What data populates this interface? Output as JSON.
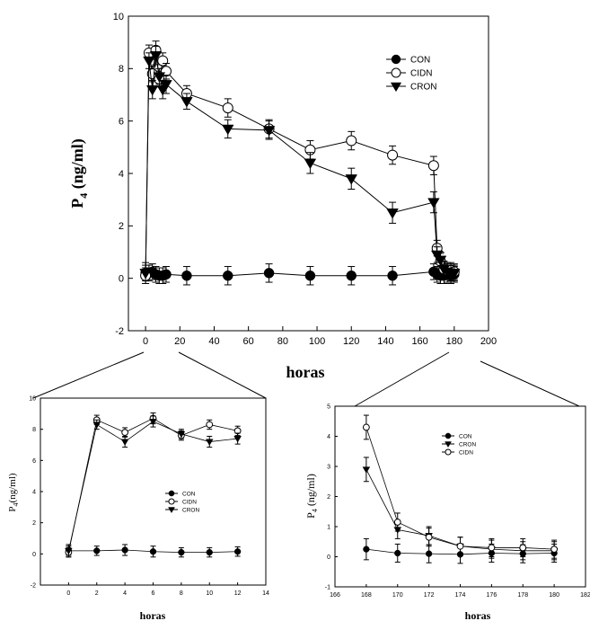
{
  "chart_data": [
    {
      "type": "line",
      "xlabel": "horas",
      "ylabel": "P",
      "ylabel_sub": "4",
      "ylabel_unit": " (ng/ml)",
      "xlim": [
        -10,
        200
      ],
      "ylim": [
        -2,
        10
      ],
      "xticks": [
        0,
        20,
        40,
        60,
        80,
        100,
        120,
        140,
        160,
        180,
        200
      ],
      "yticks": [
        -2,
        0,
        2,
        4,
        6,
        8,
        10
      ],
      "grid": false,
      "legend_position": "top-right",
      "legend_order": [
        "CON",
        "CIDN",
        "CRON"
      ],
      "series": [
        {
          "name": "CON",
          "marker": "filled-circle",
          "x": [
            0,
            2,
            4,
            6,
            8,
            10,
            12,
            24,
            48,
            72,
            96,
            120,
            144,
            168,
            170,
            172,
            174,
            176,
            178,
            180
          ],
          "y": [
            0.2,
            0.2,
            0.25,
            0.15,
            0.1,
            0.1,
            0.15,
            0.1,
            0.1,
            0.2,
            0.1,
            0.1,
            0.1,
            0.25,
            0.15,
            0.1,
            0.1,
            0.15,
            0.1,
            0.15
          ],
          "err": [
            0.4,
            0.3,
            0.3,
            0.3,
            0.3,
            0.3,
            0.3,
            0.35,
            0.35,
            0.35,
            0.35,
            0.35,
            0.35,
            0.3,
            0.3,
            0.3,
            0.3,
            0.3,
            0.3,
            0.3
          ]
        },
        {
          "name": "CIDN",
          "marker": "open-circle",
          "x": [
            0,
            2,
            4,
            6,
            8,
            10,
            12,
            24,
            48,
            72,
            96,
            120,
            144,
            168,
            170,
            172,
            174,
            176,
            178,
            180
          ],
          "y": [
            0.1,
            8.6,
            7.8,
            8.7,
            7.6,
            8.3,
            7.9,
            7.05,
            6.5,
            5.7,
            4.9,
            5.25,
            4.7,
            4.3,
            1.15,
            0.65,
            0.35,
            0.3,
            0.3,
            0.25
          ],
          "err": [
            0.3,
            0.3,
            0.3,
            0.35,
            0.3,
            0.3,
            0.3,
            0.3,
            0.35,
            0.35,
            0.35,
            0.35,
            0.35,
            0.35,
            0.3,
            0.3,
            0.3,
            0.3,
            0.3,
            0.3
          ]
        },
        {
          "name": "CRON",
          "marker": "filled-triangle-down",
          "x": [
            0,
            2,
            4,
            6,
            8,
            10,
            12,
            24,
            48,
            72,
            96,
            120,
            144,
            168,
            170,
            172,
            174,
            176,
            178,
            180
          ],
          "y": [
            0.2,
            8.3,
            7.2,
            8.5,
            7.7,
            7.2,
            7.4,
            6.75,
            5.7,
            5.65,
            4.4,
            3.8,
            2.5,
            2.9,
            0.9,
            0.7,
            0.35,
            0.25,
            0.2,
            0.2
          ],
          "err": [
            0.3,
            0.3,
            0.35,
            0.35,
            0.3,
            0.35,
            0.35,
            0.3,
            0.35,
            0.35,
            0.4,
            0.4,
            0.4,
            0.4,
            0.3,
            0.3,
            0.3,
            0.3,
            0.3,
            0.3
          ]
        }
      ]
    },
    {
      "type": "line",
      "xlabel": "horas",
      "ylabel": "P",
      "ylabel_sub": "4",
      "ylabel_unit": "(ng/ml)",
      "xlim": [
        -2,
        14
      ],
      "ylim": [
        -2,
        10
      ],
      "xticks": [
        0,
        2,
        4,
        6,
        8,
        10,
        12,
        14
      ],
      "yticks": [
        -2,
        0,
        2,
        4,
        6,
        8,
        10
      ],
      "grid": false,
      "legend_position": "center",
      "legend_order": [
        "CON",
        "CIDN",
        "CRON"
      ],
      "series": [
        {
          "name": "CON",
          "marker": "filled-circle",
          "x": [
            0,
            2,
            4,
            6,
            8,
            10,
            12
          ],
          "y": [
            0.2,
            0.2,
            0.25,
            0.15,
            0.1,
            0.1,
            0.15
          ],
          "err": [
            0.4,
            0.3,
            0.35,
            0.35,
            0.3,
            0.3,
            0.3
          ]
        },
        {
          "name": "CIDN",
          "marker": "open-circle",
          "x": [
            0,
            2,
            4,
            6,
            8,
            10,
            12
          ],
          "y": [
            0.1,
            8.6,
            7.8,
            8.7,
            7.6,
            8.3,
            7.9
          ],
          "err": [
            0.3,
            0.3,
            0.3,
            0.35,
            0.3,
            0.3,
            0.3
          ]
        },
        {
          "name": "CRON",
          "marker": "filled-triangle-down",
          "x": [
            0,
            2,
            4,
            6,
            8,
            10,
            12
          ],
          "y": [
            0.2,
            8.3,
            7.2,
            8.5,
            7.7,
            7.2,
            7.4
          ],
          "err": [
            0.3,
            0.3,
            0.35,
            0.35,
            0.3,
            0.35,
            0.35
          ]
        }
      ]
    },
    {
      "type": "line",
      "xlabel": "horas",
      "ylabel": "P",
      "ylabel_sub": "4",
      "ylabel_unit": " (ng/ml)",
      "xlim": [
        166,
        182
      ],
      "ylim": [
        -1,
        5
      ],
      "xticks": [
        166,
        168,
        170,
        172,
        174,
        176,
        178,
        180,
        182
      ],
      "yticks": [
        -1,
        0,
        1,
        2,
        3,
        4,
        5
      ],
      "grid": false,
      "legend_position": "top-left",
      "legend_order": [
        "CON",
        "CRON",
        "CIDN"
      ],
      "series": [
        {
          "name": "CON",
          "marker": "filled-circle",
          "x": [
            168,
            170,
            172,
            174,
            176,
            178,
            180
          ],
          "y": [
            0.25,
            0.12,
            0.1,
            0.08,
            0.12,
            0.1,
            0.12
          ],
          "err": [
            0.35,
            0.3,
            0.3,
            0.3,
            0.3,
            0.3,
            0.3
          ]
        },
        {
          "name": "CRON",
          "marker": "filled-triangle-down",
          "x": [
            168,
            170,
            172,
            174,
            176,
            178,
            180
          ],
          "y": [
            2.9,
            0.9,
            0.7,
            0.35,
            0.25,
            0.2,
            0.2
          ],
          "err": [
            0.4,
            0.3,
            0.3,
            0.3,
            0.3,
            0.3,
            0.3
          ]
        },
        {
          "name": "CIDN",
          "marker": "open-circle",
          "x": [
            168,
            170,
            172,
            174,
            176,
            178,
            180
          ],
          "y": [
            4.3,
            1.15,
            0.65,
            0.35,
            0.3,
            0.3,
            0.25
          ],
          "err": [
            0.4,
            0.3,
            0.3,
            0.3,
            0.3,
            0.3,
            0.3
          ]
        }
      ]
    }
  ]
}
